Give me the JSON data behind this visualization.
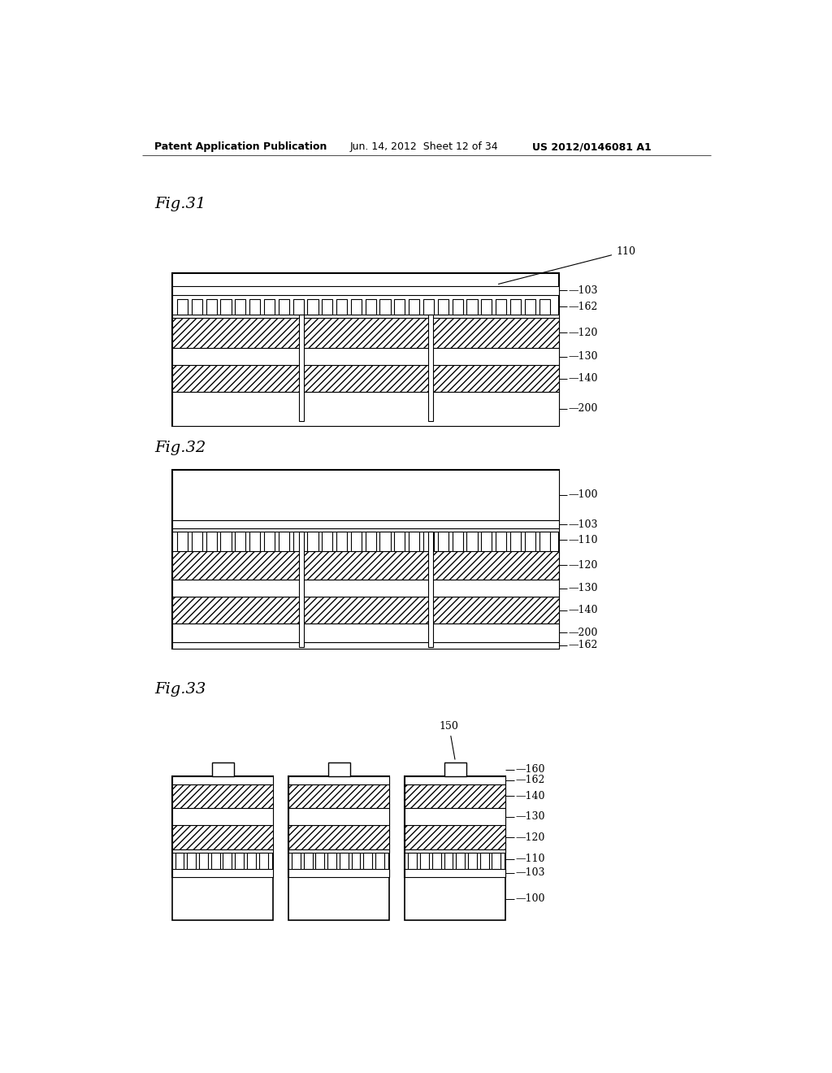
{
  "bg_color": "#ffffff",
  "header_left": "Patent Application Publication",
  "header_mid": "Jun. 14, 2012  Sheet 12 of 34",
  "header_right": "US 2012/0146081 A1",
  "fig31_label": "Fig.31",
  "fig32_label": "Fig.32",
  "fig33_label": "Fig.33"
}
